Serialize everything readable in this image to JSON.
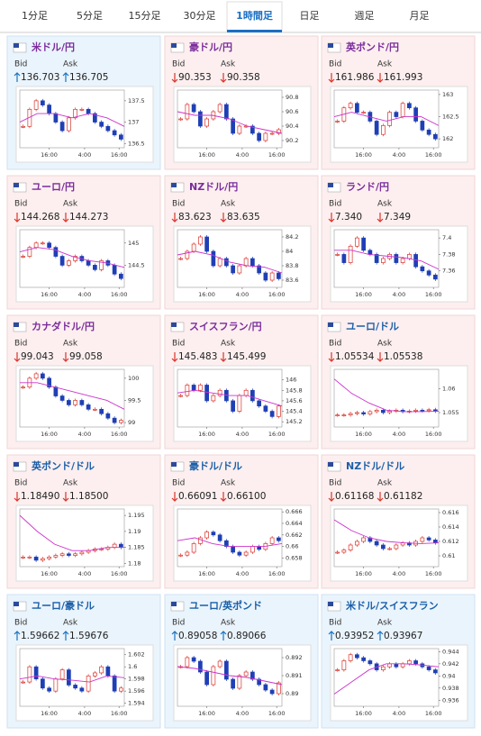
{
  "tabs": [
    "1分足",
    "5分足",
    "15分足",
    "30分足",
    "1時間足",
    "日足",
    "週足",
    "月足"
  ],
  "active_tab": 4,
  "bid_label": "Bid",
  "ask_label": "Ask",
  "x_labels": [
    "16:00",
    "4:00",
    "16:00"
  ],
  "panels": [
    {
      "title": "米ドル/円",
      "color": "#7a2d9c",
      "direction": "up",
      "bid": "136.703",
      "ask": "136.705",
      "chart": {
        "type": "candlestick",
        "ylim": [
          136.4,
          137.75
        ],
        "yticks": [
          136.5,
          137,
          137.5
        ],
        "closes": [
          136.9,
          137.3,
          137.5,
          137.4,
          137.2,
          137.0,
          136.8,
          137.1,
          137.3,
          137.3,
          137.2,
          137.0,
          136.9,
          136.8,
          136.7,
          136.6
        ],
        "ma": [
          137.0,
          137.2,
          137.2,
          137.1,
          137.2,
          137.1,
          136.9
        ]
      }
    },
    {
      "title": "豪ドル/円",
      "color": "#7a2d9c",
      "direction": "down",
      "bid": "90.353",
      "ask": "90.358",
      "chart": {
        "type": "candlestick",
        "ylim": [
          90.1,
          90.9
        ],
        "yticks": [
          90.2,
          90.4,
          90.6,
          90.8
        ],
        "closes": [
          90.5,
          90.7,
          90.6,
          90.4,
          90.5,
          90.6,
          90.7,
          90.5,
          90.3,
          90.4,
          90.4,
          90.3,
          90.2,
          90.3,
          90.3,
          90.35
        ],
        "ma": [
          90.6,
          90.55,
          90.55,
          90.5,
          90.4,
          90.35,
          90.3
        ]
      }
    },
    {
      "title": "英ポンド/円",
      "color": "#7a2d9c",
      "direction": "down",
      "bid": "161.986",
      "ask": "161.993",
      "chart": {
        "type": "candlestick",
        "ylim": [
          161.8,
          163.1
        ],
        "yticks": [
          162,
          162.5,
          163
        ],
        "closes": [
          162.4,
          162.7,
          162.8,
          162.6,
          162.6,
          162.4,
          162.1,
          162.3,
          162.6,
          162.5,
          162.8,
          162.7,
          162.4,
          162.2,
          162.1,
          162.0
        ],
        "ma": [
          162.5,
          162.6,
          162.5,
          162.4,
          162.5,
          162.5,
          162.3
        ]
      }
    },
    {
      "title": "ユーロ/円",
      "color": "#7a2d9c",
      "direction": "down",
      "bid": "144.268",
      "ask": "144.273",
      "chart": {
        "type": "candlestick",
        "ylim": [
          144.0,
          145.3
        ],
        "yticks": [
          144.5,
          145
        ],
        "closes": [
          144.7,
          144.9,
          145.0,
          145.0,
          144.9,
          144.7,
          144.5,
          144.6,
          144.7,
          144.6,
          144.5,
          144.4,
          144.6,
          144.5,
          144.3,
          144.2
        ],
        "ma": [
          144.8,
          144.9,
          144.85,
          144.7,
          144.6,
          144.55,
          144.45
        ]
      }
    },
    {
      "title": "NZドル/円",
      "color": "#7a2d9c",
      "direction": "down",
      "bid": "83.623",
      "ask": "83.635",
      "chart": {
        "type": "candlestick",
        "ylim": [
          83.5,
          84.3
        ],
        "yticks": [
          83.6,
          83.8,
          84,
          84.2
        ],
        "closes": [
          83.9,
          84.0,
          84.1,
          84.2,
          84.0,
          83.8,
          83.9,
          83.8,
          83.7,
          83.8,
          83.9,
          83.8,
          83.7,
          83.6,
          83.7,
          83.62
        ],
        "ma": [
          83.95,
          84.0,
          83.95,
          83.85,
          83.8,
          83.78,
          83.7
        ]
      }
    },
    {
      "title": "ランド/円",
      "color": "#7a2d9c",
      "direction": "down",
      "bid": "7.340",
      "ask": "7.349",
      "chart": {
        "type": "candlestick",
        "ylim": [
          7.34,
          7.41
        ],
        "yticks": [
          7.36,
          7.38,
          7.4
        ],
        "closes": [
          7.38,
          7.37,
          7.39,
          7.4,
          7.385,
          7.38,
          7.37,
          7.375,
          7.38,
          7.37,
          7.375,
          7.38,
          7.365,
          7.36,
          7.355,
          7.35
        ],
        "ma": [
          7.385,
          7.385,
          7.38,
          7.378,
          7.376,
          7.372,
          7.362
        ]
      }
    },
    {
      "title": "カナダドル/円",
      "color": "#7a2d9c",
      "direction": "down",
      "bid": "99.043",
      "ask": "99.058",
      "chart": {
        "type": "candlestick",
        "ylim": [
          98.9,
          100.2
        ],
        "yticks": [
          99,
          99.5,
          100
        ],
        "closes": [
          99.8,
          100.0,
          100.1,
          100.0,
          99.8,
          99.6,
          99.5,
          99.4,
          99.5,
          99.4,
          99.3,
          99.3,
          99.2,
          99.1,
          99.0,
          99.05
        ],
        "ma": [
          99.9,
          99.9,
          99.8,
          99.7,
          99.6,
          99.5,
          99.3
        ]
      }
    },
    {
      "title": "スイスフラン/円",
      "color": "#7a2d9c",
      "direction": "down",
      "bid": "145.483",
      "ask": "145.499",
      "chart": {
        "type": "candlestick",
        "ylim": [
          145.1,
          146.2
        ],
        "yticks": [
          145.2,
          145.4,
          145.6,
          145.8,
          146
        ],
        "closes": [
          145.7,
          145.9,
          145.8,
          145.9,
          145.6,
          145.7,
          145.8,
          145.6,
          145.4,
          145.7,
          145.8,
          145.6,
          145.5,
          145.4,
          145.3,
          145.5
        ],
        "ma": [
          145.75,
          145.8,
          145.75,
          145.7,
          145.7,
          145.6,
          145.5
        ]
      }
    },
    {
      "title": "ユーロ/ドル",
      "color": "#1b5fa8",
      "direction": "down",
      "bid": "1.05534",
      "ask": "1.05538",
      "chart": {
        "type": "candlestick",
        "ylim": [
          1.052,
          1.064
        ],
        "yticks": [
          1.055,
          1.06
        ],
        "closes": [
          1.0545,
          1.0545,
          1.0548,
          1.055,
          1.0547,
          1.0552,
          1.0555,
          1.055,
          1.0553,
          1.0555,
          1.0552,
          1.0553,
          1.0555,
          1.0554,
          1.0556,
          1.0553
        ],
        "ma": [
          1.062,
          1.059,
          1.057,
          1.0555,
          1.0552,
          1.0552,
          1.0553
        ]
      }
    },
    {
      "title": "英ポンド/ドル",
      "color": "#1b5fa8",
      "direction": "down",
      "bid": "1.18490",
      "ask": "1.18500",
      "chart": {
        "type": "candlestick",
        "ylim": [
          1.179,
          1.197
        ],
        "yticks": [
          1.18,
          1.185,
          1.19,
          1.195
        ],
        "closes": [
          1.182,
          1.182,
          1.181,
          1.1815,
          1.182,
          1.1825,
          1.183,
          1.1825,
          1.183,
          1.1835,
          1.184,
          1.1845,
          1.1845,
          1.185,
          1.186,
          1.185
        ],
        "ma": [
          1.195,
          1.19,
          1.186,
          1.184,
          1.184,
          1.185,
          1.185
        ]
      }
    },
    {
      "title": "豪ドル/ドル",
      "color": "#1b5fa8",
      "direction": "down",
      "bid": "0.66091",
      "ask": "0.66100",
      "chart": {
        "type": "candlestick",
        "ylim": [
          0.6565,
          0.6665
        ],
        "yticks": [
          0.658,
          0.66,
          0.662,
          0.664,
          0.666
        ],
        "closes": [
          0.6585,
          0.659,
          0.6605,
          0.6615,
          0.6625,
          0.662,
          0.661,
          0.66,
          0.659,
          0.6585,
          0.659,
          0.66,
          0.6595,
          0.6605,
          0.6615,
          0.661
        ],
        "ma": [
          0.661,
          0.6615,
          0.6605,
          0.66,
          0.66,
          0.66,
          0.6605
        ]
      }
    },
    {
      "title": "NZドル/ドル",
      "color": "#1b5fa8",
      "direction": "down",
      "bid": "0.61168",
      "ask": "0.61182",
      "chart": {
        "type": "candlestick",
        "ylim": [
          0.6085,
          0.6165
        ],
        "yticks": [
          0.61,
          0.612,
          0.614,
          0.616
        ],
        "closes": [
          0.6105,
          0.6108,
          0.6115,
          0.612,
          0.6125,
          0.612,
          0.6115,
          0.611,
          0.611,
          0.6115,
          0.6118,
          0.6115,
          0.612,
          0.6125,
          0.6122,
          0.6118
        ],
        "ma": [
          0.615,
          0.6135,
          0.6125,
          0.612,
          0.6118,
          0.6117,
          0.6118
        ]
      }
    },
    {
      "title": "ユーロ/豪ドル",
      "color": "#1b5fa8",
      "direction": "up",
      "bid": "1.59662",
      "ask": "1.59676",
      "chart": {
        "type": "candlestick",
        "ylim": [
          1.5935,
          1.603
        ],
        "yticks": [
          1.594,
          1.596,
          1.598,
          1.6,
          1.602
        ],
        "closes": [
          1.5975,
          1.6,
          1.598,
          1.5965,
          1.596,
          1.598,
          1.5995,
          1.597,
          1.5965,
          1.596,
          1.5985,
          1.599,
          1.6,
          1.5985,
          1.596,
          1.5965
        ],
        "ma": [
          1.598,
          1.5985,
          1.598,
          1.5978,
          1.5975,
          1.5985,
          1.5982
        ]
      }
    },
    {
      "title": "ユーロ/英ポンド",
      "color": "#1b5fa8",
      "direction": "up",
      "bid": "0.89058",
      "ask": "0.89066",
      "chart": {
        "type": "candlestick",
        "ylim": [
          0.8893,
          0.8925
        ],
        "yticks": [
          0.89,
          0.891,
          0.892
        ],
        "closes": [
          0.8915,
          0.892,
          0.8918,
          0.8912,
          0.8905,
          0.8915,
          0.8918,
          0.8908,
          0.8903,
          0.891,
          0.8912,
          0.8908,
          0.8905,
          0.8902,
          0.89,
          0.8906
        ],
        "ma": [
          0.8915,
          0.8914,
          0.8912,
          0.891,
          0.8909,
          0.8907,
          0.8905
        ]
      }
    },
    {
      "title": "米ドル/スイスフラン",
      "color": "#1b5fa8",
      "direction": "up",
      "bid": "0.93952",
      "ask": "0.93967",
      "chart": {
        "type": "candlestick",
        "ylim": [
          0.935,
          0.9445
        ],
        "yticks": [
          0.936,
          0.938,
          0.94,
          0.942,
          0.944
        ],
        "closes": [
          0.941,
          0.9425,
          0.9435,
          0.943,
          0.9425,
          0.942,
          0.941,
          0.9415,
          0.942,
          0.9415,
          0.942,
          0.9425,
          0.942,
          0.9415,
          0.941,
          0.9405
        ],
        "ma": [
          0.937,
          0.939,
          0.941,
          0.942,
          0.942,
          0.9418,
          0.9415
        ]
      }
    }
  ]
}
